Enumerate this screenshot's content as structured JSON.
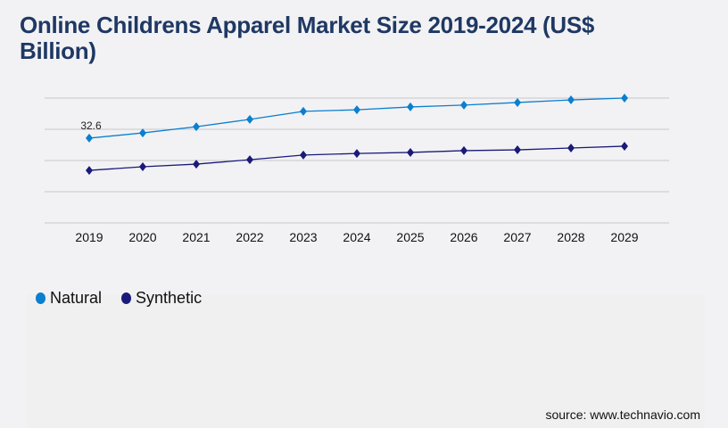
{
  "chart_data": {
    "type": "line",
    "title": "Online Childrens Apparel Market Size 2019-2024 (US$ Billion)",
    "categories": [
      "2019",
      "2020",
      "2021",
      "2022",
      "2023",
      "2024",
      "2025",
      "2026",
      "2027",
      "2028",
      "2029"
    ],
    "series": [
      {
        "name": "Natural",
        "color": "#0a7fd0",
        "values": [
          32.6,
          34.6,
          37.0,
          39.8,
          42.9,
          43.5,
          44.6,
          45.3,
          46.3,
          47.3,
          48.0
        ]
      },
      {
        "name": "Synthetic",
        "color": "#1a1a7a",
        "values": [
          20.2,
          21.6,
          22.6,
          24.3,
          26.1,
          26.7,
          27.1,
          27.8,
          28.1,
          28.8,
          29.5
        ]
      }
    ],
    "data_labels": [
      {
        "series": "Natural",
        "category": "2019",
        "text": "32.6"
      }
    ],
    "ylim": [
      0,
      48
    ],
    "grid": true,
    "legend": "bottom-left"
  },
  "source": "source: www.technavio.com"
}
